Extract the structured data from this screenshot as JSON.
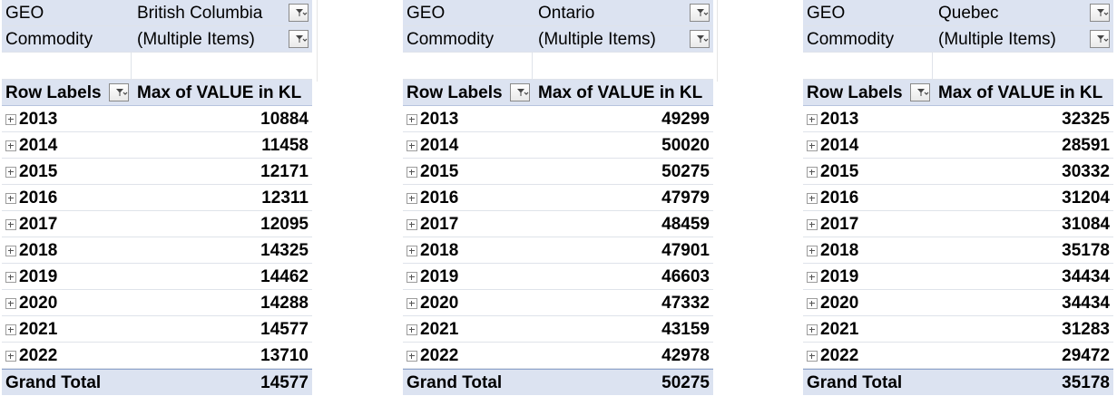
{
  "pivots": [
    {
      "geo_label": "GEO",
      "geo_value": "British Columbia",
      "commodity_label": "Commodity",
      "commodity_value": "(Multiple Items)",
      "row_labels": "Row Labels",
      "value_header": "Max of VALUE in KL",
      "rows": [
        {
          "year": "2013",
          "value": "10884"
        },
        {
          "year": "2014",
          "value": "11458"
        },
        {
          "year": "2015",
          "value": "12171"
        },
        {
          "year": "2016",
          "value": "12311"
        },
        {
          "year": "2017",
          "value": "12095"
        },
        {
          "year": "2018",
          "value": "14325"
        },
        {
          "year": "2019",
          "value": "14462"
        },
        {
          "year": "2020",
          "value": "14288"
        },
        {
          "year": "2021",
          "value": "14577"
        },
        {
          "year": "2022",
          "value": "13710"
        }
      ],
      "total_label": "Grand Total",
      "total_value": "14577"
    },
    {
      "geo_label": "GEO",
      "geo_value": "Ontario",
      "commodity_label": "Commodity",
      "commodity_value": "(Multiple Items)",
      "row_labels": "Row Labels",
      "value_header": "Max of VALUE in KL",
      "rows": [
        {
          "year": "2013",
          "value": "49299"
        },
        {
          "year": "2014",
          "value": "50020"
        },
        {
          "year": "2015",
          "value": "50275"
        },
        {
          "year": "2016",
          "value": "47979"
        },
        {
          "year": "2017",
          "value": "48459"
        },
        {
          "year": "2018",
          "value": "47901"
        },
        {
          "year": "2019",
          "value": "46603"
        },
        {
          "year": "2020",
          "value": "47332"
        },
        {
          "year": "2021",
          "value": "43159"
        },
        {
          "year": "2022",
          "value": "42978"
        }
      ],
      "total_label": "Grand Total",
      "total_value": "50275"
    },
    {
      "geo_label": "GEO",
      "geo_value": "Quebec",
      "commodity_label": "Commodity",
      "commodity_value": "(Multiple Items)",
      "row_labels": "Row Labels",
      "value_header": "Max of VALUE in KL",
      "rows": [
        {
          "year": "2013",
          "value": "32325"
        },
        {
          "year": "2014",
          "value": "28591"
        },
        {
          "year": "2015",
          "value": "30332"
        },
        {
          "year": "2016",
          "value": "31204"
        },
        {
          "year": "2017",
          "value": "31084"
        },
        {
          "year": "2018",
          "value": "35178"
        },
        {
          "year": "2019",
          "value": "34434"
        },
        {
          "year": "2020",
          "value": "34434"
        },
        {
          "year": "2021",
          "value": "31283"
        },
        {
          "year": "2022",
          "value": "29472"
        }
      ],
      "total_label": "Grand Total",
      "total_value": "35178"
    }
  ],
  "icons": {
    "filter_button": "filter-dropdown-icon",
    "expand_button": "expand-plus-icon"
  },
  "colors": {
    "header_fill": "#dce3f1",
    "total_border": "#8fa4cc",
    "grid_line": "#dfe3ea"
  }
}
